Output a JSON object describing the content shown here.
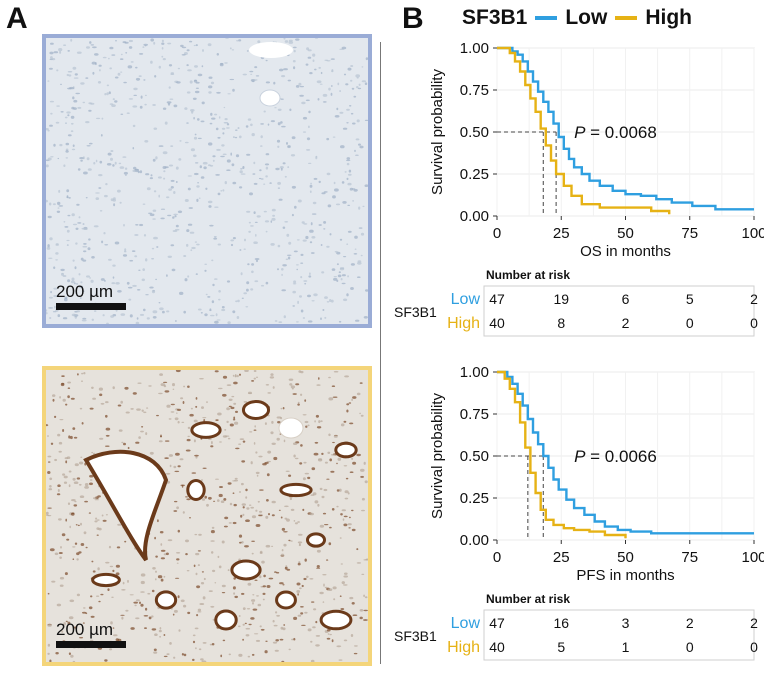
{
  "panels": {
    "a_label": "A",
    "b_label": "B",
    "images": [
      {
        "id": "low",
        "frame_color": "#9aacd6",
        "stain": "low",
        "scale_bar_label": "200 µm"
      },
      {
        "id": "high",
        "frame_color": "#f4d57a",
        "stain": "high",
        "scale_bar_label": "200 µm"
      }
    ]
  },
  "legend": {
    "title": "SF3B1",
    "items": [
      {
        "label": "Low",
        "color": "#2f9fe0"
      },
      {
        "label": "High",
        "color": "#e6b215"
      }
    ]
  },
  "chart_data": [
    {
      "type": "line",
      "subtype": "kaplan-meier",
      "xlabel": "OS in months",
      "ylabel": "Survival probability",
      "xlim": [
        0,
        100
      ],
      "ylim": [
        0,
        1
      ],
      "xticks": [
        0,
        25,
        50,
        75,
        100
      ],
      "yticks": [
        "0.00",
        "0.25",
        "0.50",
        "0.75",
        "1.00"
      ],
      "grid": true,
      "annotation": {
        "p_label": "P",
        "p_value": "= 0.0068"
      },
      "medians": [
        {
          "series": "Low",
          "x": 23
        },
        {
          "series": "High",
          "x": 18
        }
      ],
      "series": [
        {
          "name": "Low",
          "color": "#2f9fe0",
          "x": [
            0,
            6,
            8,
            10,
            12,
            14,
            16,
            18,
            20,
            22,
            24,
            26,
            28,
            30,
            33,
            36,
            40,
            45,
            50,
            56,
            62,
            68,
            76,
            85,
            100
          ],
          "y": [
            1.0,
            0.98,
            0.96,
            0.92,
            0.86,
            0.8,
            0.74,
            0.68,
            0.62,
            0.55,
            0.47,
            0.4,
            0.34,
            0.29,
            0.25,
            0.21,
            0.18,
            0.15,
            0.13,
            0.12,
            0.1,
            0.08,
            0.06,
            0.04,
            0.04
          ]
        },
        {
          "name": "High",
          "color": "#e6b215",
          "x": [
            0,
            5,
            7,
            9,
            11,
            13,
            15,
            17,
            19,
            21,
            23,
            26,
            29,
            33,
            40,
            50,
            60,
            67
          ],
          "y": [
            1.0,
            0.97,
            0.92,
            0.86,
            0.78,
            0.7,
            0.62,
            0.52,
            0.42,
            0.33,
            0.25,
            0.18,
            0.12,
            0.07,
            0.05,
            0.05,
            0.03,
            0.01
          ]
        }
      ]
    },
    {
      "type": "line",
      "subtype": "kaplan-meier",
      "xlabel": "PFS in months",
      "ylabel": "Survival probability",
      "xlim": [
        0,
        100
      ],
      "ylim": [
        0,
        1
      ],
      "xticks": [
        0,
        25,
        50,
        75,
        100
      ],
      "yticks": [
        "0.00",
        "0.25",
        "0.50",
        "0.75",
        "1.00"
      ],
      "grid": true,
      "annotation": {
        "p_label": "P",
        "p_value": "= 0.0066"
      },
      "medians": [
        {
          "series": "Low",
          "x": 18
        },
        {
          "series": "High",
          "x": 12
        }
      ],
      "series": [
        {
          "name": "Low",
          "color": "#2f9fe0",
          "x": [
            0,
            4,
            6,
            8,
            10,
            12,
            14,
            16,
            18,
            20,
            22,
            24,
            27,
            30,
            34,
            38,
            42,
            47,
            52,
            60,
            100
          ],
          "y": [
            1.0,
            0.97,
            0.93,
            0.87,
            0.8,
            0.72,
            0.64,
            0.57,
            0.5,
            0.43,
            0.36,
            0.3,
            0.24,
            0.19,
            0.15,
            0.11,
            0.08,
            0.06,
            0.05,
            0.04,
            0.04
          ]
        },
        {
          "name": "High",
          "color": "#e6b215",
          "x": [
            0,
            3,
            5,
            7,
            9,
            11,
            13,
            15,
            17,
            19,
            22,
            26,
            30,
            36,
            42,
            50
          ],
          "y": [
            1.0,
            0.96,
            0.9,
            0.82,
            0.7,
            0.55,
            0.4,
            0.28,
            0.18,
            0.12,
            0.09,
            0.07,
            0.06,
            0.05,
            0.03,
            0.01
          ]
        }
      ]
    }
  ],
  "risk_tables": [
    {
      "title": "Number at risk",
      "row_group": "SF3B1",
      "rows": [
        {
          "label": "Low",
          "color": "#2f9fe0",
          "values": [
            "47",
            "19",
            "6",
            "5",
            "2"
          ]
        },
        {
          "label": "High",
          "color": "#e6b215",
          "values": [
            "40",
            "8",
            "2",
            "0",
            "0"
          ]
        }
      ]
    },
    {
      "title": "Number at risk",
      "row_group": "SF3B1",
      "rows": [
        {
          "label": "Low",
          "color": "#2f9fe0",
          "values": [
            "47",
            "16",
            "3",
            "2",
            "2"
          ]
        },
        {
          "label": "High",
          "color": "#e6b215",
          "values": [
            "40",
            "5",
            "1",
            "0",
            "0"
          ]
        }
      ]
    }
  ]
}
